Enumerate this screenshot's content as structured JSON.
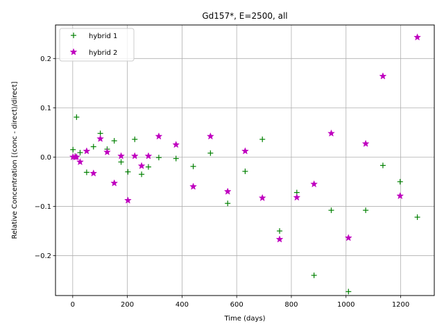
{
  "chart_data": {
    "type": "scatter",
    "title": "Gd157*, E=2500, all",
    "xlabel": "Time (days)",
    "ylabel": "Relative Concentration [(conc - direct)/direct]",
    "xlim": [
      -63,
      1323
    ],
    "ylim": [
      -0.281,
      0.268
    ],
    "xticks": [
      0,
      200,
      400,
      600,
      800,
      1000,
      1200
    ],
    "yticks": [
      -0.2,
      -0.1,
      0.0,
      0.1,
      0.2
    ],
    "xtick_labels": [
      "0",
      "200",
      "400",
      "600",
      "800",
      "1000",
      "1200"
    ],
    "ytick_labels": [
      "−0.2",
      "−0.1",
      "0.0",
      "0.1",
      "0.2"
    ],
    "grid": true,
    "legend_position": "top-left",
    "series": [
      {
        "name": "hybrid 1",
        "marker": "plus",
        "color": "#008000",
        "x": [
          1,
          9,
          14,
          27,
          51,
          76,
          101,
          126,
          152,
          177,
          202,
          227,
          252,
          277,
          315,
          378,
          441,
          504,
          567,
          631,
          694,
          757,
          820,
          883,
          946,
          1009,
          1072,
          1135,
          1198,
          1261
        ],
        "y": [
          0.015,
          0.002,
          0.081,
          0.009,
          -0.031,
          0.021,
          0.048,
          0.016,
          0.033,
          -0.01,
          -0.03,
          0.036,
          -0.035,
          -0.02,
          -0.001,
          -0.003,
          -0.019,
          0.008,
          -0.094,
          -0.029,
          0.036,
          -0.15,
          -0.072,
          -0.24,
          -0.108,
          -0.273,
          -0.108,
          -0.017,
          -0.05,
          -0.122
        ]
      },
      {
        "name": "hybrid 2",
        "marker": "star",
        "color": "#bf00bf",
        "x": [
          1,
          9,
          14,
          27,
          51,
          76,
          101,
          126,
          152,
          177,
          202,
          227,
          252,
          277,
          315,
          378,
          441,
          504,
          567,
          631,
          694,
          757,
          820,
          883,
          946,
          1009,
          1072,
          1135,
          1198,
          1261
        ],
        "y": [
          0.0,
          0.0,
          0.0,
          -0.01,
          0.012,
          -0.033,
          0.037,
          0.01,
          -0.053,
          0.002,
          -0.088,
          0.002,
          -0.018,
          0.002,
          0.042,
          0.025,
          -0.06,
          0.042,
          -0.07,
          0.012,
          -0.083,
          -0.167,
          -0.082,
          -0.055,
          0.048,
          -0.164,
          0.027,
          0.164,
          -0.079,
          0.243
        ]
      }
    ]
  }
}
